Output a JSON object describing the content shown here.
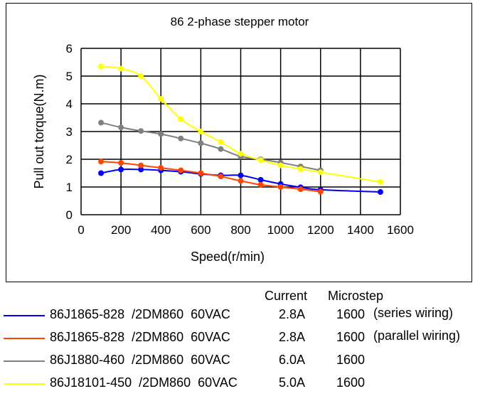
{
  "chart_data": {
    "type": "line",
    "title": "86 2-phase stepper motor",
    "xlabel": "Speed(r/min)",
    "ylabel": "Pull out torque(N.m)",
    "xlim": [
      0,
      1600
    ],
    "ylim": [
      0,
      6
    ],
    "xticks": [
      0,
      200,
      400,
      600,
      800,
      1000,
      1200,
      1400,
      1600
    ],
    "yticks": [
      0,
      1,
      2,
      3,
      4,
      5,
      6
    ],
    "grid": true,
    "legend_position": "bottom",
    "series": [
      {
        "name": "86J1865-828  /2DM860  60VAC",
        "current": "2.8A",
        "microstep": "1600",
        "note": "(series wiring)",
        "color": "#0000ff",
        "x": [
          100,
          200,
          300,
          400,
          500,
          600,
          700,
          800,
          900,
          1000,
          1100,
          1200,
          1500
        ],
        "y": [
          1.5,
          1.63,
          1.63,
          1.6,
          1.55,
          1.47,
          1.42,
          1.42,
          1.26,
          1.11,
          0.99,
          0.9,
          0.82
        ]
      },
      {
        "name": "86J1865-828  /2DM860  60VAC",
        "current": "2.8A",
        "microstep": "1600",
        "note": "(parallel wiring)",
        "color": "#ff4500",
        "x": [
          100,
          200,
          300,
          400,
          500,
          600,
          700,
          800,
          900,
          1000,
          1100,
          1200
        ],
        "y": [
          1.92,
          1.87,
          1.78,
          1.69,
          1.6,
          1.5,
          1.38,
          1.22,
          1.08,
          1.0,
          0.92,
          0.83
        ]
      },
      {
        "name": "86J1880-460  /2DM860  60VAC",
        "current": "6.0A",
        "microstep": "1600",
        "note": "",
        "color": "#808080",
        "x": [
          100,
          200,
          300,
          400,
          500,
          600,
          700,
          800,
          900,
          1000,
          1100,
          1200
        ],
        "y": [
          3.32,
          3.15,
          3.02,
          2.91,
          2.75,
          2.58,
          2.37,
          2.1,
          2.0,
          1.88,
          1.74,
          1.6
        ]
      },
      {
        "name": "86J18101-450  /2DM860  60VAC",
        "current": "5.0A",
        "microstep": "1600",
        "note": "",
        "color": "#ffff00",
        "x": [
          100,
          200,
          300,
          400,
          500,
          600,
          700,
          800,
          900,
          1000,
          1100,
          1200,
          1500
        ],
        "y": [
          5.35,
          5.27,
          5.0,
          4.18,
          3.45,
          3.0,
          2.62,
          2.2,
          1.97,
          1.78,
          1.65,
          1.53,
          1.18
        ]
      }
    ]
  },
  "legend": {
    "current_header": "Current",
    "microstep_header": "Microstep"
  }
}
